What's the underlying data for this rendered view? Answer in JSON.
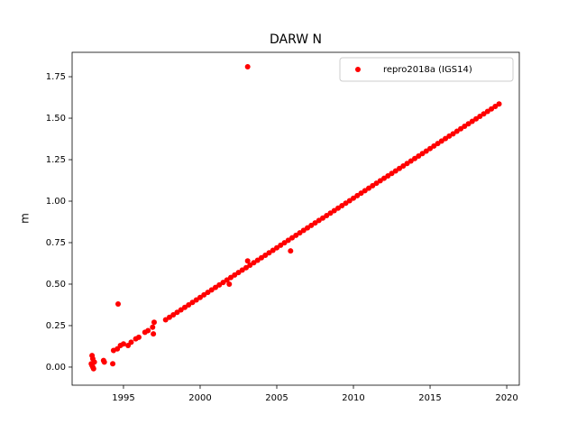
{
  "chart_data": {
    "type": "scatter",
    "title": "DARW N",
    "ylabel": "m",
    "x": [
      1992.9,
      1992.95,
      1993.0,
      1993.05,
      1993.1,
      1993.0,
      1992.95,
      1993.7,
      1993.75,
      1994.3,
      1994.35,
      1994.65,
      1994.6,
      1994.8,
      1995.0,
      1995.3,
      1995.5,
      1995.8,
      1996.0,
      1996.4,
      1996.6,
      1996.9,
      1997.0,
      1996.95,
      2001.9,
      2003.1,
      2003.1,
      2005.9,
      1997.75,
      1998.0,
      1998.25,
      1998.5,
      1998.75,
      1999.0,
      1999.25,
      1999.5,
      1999.75,
      2000.0,
      2000.25,
      2000.5,
      2000.75,
      2001.0,
      2001.25,
      2001.5,
      2001.75,
      2002.0,
      2002.25,
      2002.5,
      2002.75,
      2003.0,
      2003.25,
      2003.5,
      2003.75,
      2004.0,
      2004.25,
      2004.5,
      2004.75,
      2005.0,
      2005.25,
      2005.5,
      2005.75,
      2006.0,
      2006.25,
      2006.5,
      2006.75,
      2007.0,
      2007.25,
      2007.5,
      2007.75,
      2008.0,
      2008.25,
      2008.5,
      2008.75,
      2009.0,
      2009.25,
      2009.5,
      2009.75,
      2010.0,
      2010.25,
      2010.5,
      2010.75,
      2011.0,
      2011.25,
      2011.5,
      2011.75,
      2012.0,
      2012.25,
      2012.5,
      2012.75,
      2013.0,
      2013.25,
      2013.5,
      2013.75,
      2014.0,
      2014.25,
      2014.5,
      2014.75,
      2015.0,
      2015.25,
      2015.5,
      2015.75,
      2016.0,
      2016.25,
      2016.5,
      2016.75,
      2017.0,
      2017.25,
      2017.5,
      2017.75,
      2018.0,
      2018.25,
      2018.5,
      2018.75,
      2019.0,
      2019.25,
      2019.5
    ],
    "series": [
      {
        "name": "repro2018a (IGS14)",
        "color": "#ff0000",
        "values": [
          0.02,
          0.07,
          0.0,
          -0.01,
          0.03,
          0.05,
          0.01,
          0.04,
          0.03,
          0.02,
          0.1,
          0.38,
          0.11,
          0.13,
          0.14,
          0.13,
          0.15,
          0.17,
          0.18,
          0.21,
          0.22,
          0.24,
          0.27,
          0.2,
          0.5,
          1.81,
          0.64,
          0.7,
          0.285,
          0.3,
          0.315,
          0.33,
          0.345,
          0.36,
          0.375,
          0.39,
          0.405,
          0.42,
          0.435,
          0.45,
          0.465,
          0.48,
          0.495,
          0.51,
          0.525,
          0.54,
          0.555,
          0.57,
          0.585,
          0.599,
          0.614,
          0.629,
          0.644,
          0.659,
          0.674,
          0.689,
          0.704,
          0.719,
          0.734,
          0.749,
          0.764,
          0.779,
          0.794,
          0.809,
          0.824,
          0.839,
          0.854,
          0.869,
          0.884,
          0.898,
          0.913,
          0.928,
          0.943,
          0.958,
          0.973,
          0.988,
          1.003,
          1.018,
          1.033,
          1.048,
          1.063,
          1.078,
          1.093,
          1.108,
          1.123,
          1.138,
          1.152,
          1.167,
          1.182,
          1.197,
          1.212,
          1.227,
          1.242,
          1.257,
          1.272,
          1.287,
          1.302,
          1.317,
          1.332,
          1.347,
          1.362,
          1.377,
          1.392,
          1.406,
          1.421,
          1.436,
          1.451,
          1.466,
          1.481,
          1.496,
          1.511,
          1.526,
          1.541,
          1.556,
          1.571,
          1.586
        ]
      }
    ],
    "xlim": [
      1991.65,
      2020.82
    ],
    "xticks": [
      1995,
      2000,
      2005,
      2010,
      2015,
      2020
    ],
    "ylim": [
      -0.109,
      1.897
    ],
    "yticks": [
      {
        "value": 0,
        "label": "0.00"
      },
      {
        "value": 0.25,
        "label": "0.25"
      },
      {
        "value": 0.5,
        "label": "0.50"
      },
      {
        "value": 0.75,
        "label": "0.75"
      },
      {
        "value": 1.0,
        "label": "1.00"
      },
      {
        "value": 1.25,
        "label": "1.25"
      },
      {
        "value": 1.5,
        "label": "1.50"
      },
      {
        "value": 1.75,
        "label": "1.75"
      }
    ],
    "legend": "upper right"
  }
}
